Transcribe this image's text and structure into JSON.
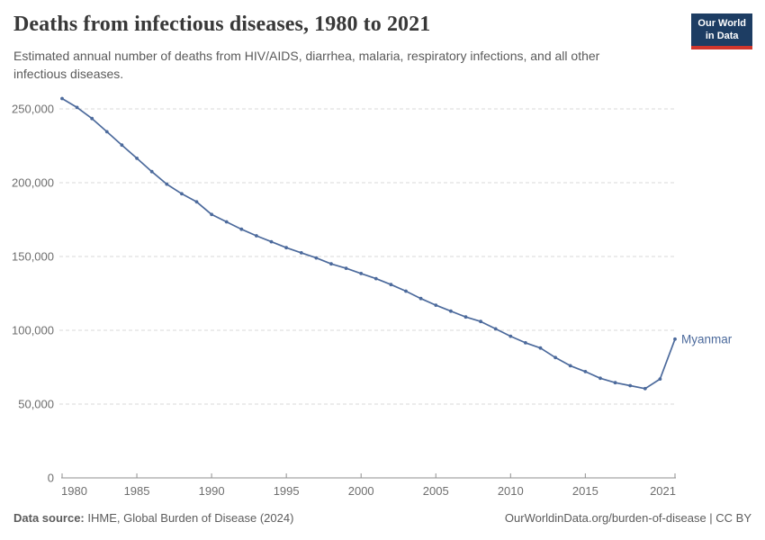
{
  "header": {
    "title": "Deaths from infectious diseases, 1980 to 2021",
    "subtitle": "Estimated annual number of deaths from HIV/AIDS, diarrhea, malaria, respiratory infections, and all other infectious diseases.",
    "logo": {
      "line1": "Our World",
      "line2": "in Data"
    }
  },
  "chart_data": {
    "type": "line",
    "title": "Deaths from infectious diseases, 1980 to 2021",
    "entity_label": "Myanmar",
    "x": [
      1980,
      1981,
      1982,
      1983,
      1984,
      1985,
      1986,
      1987,
      1988,
      1989,
      1990,
      1991,
      1992,
      1993,
      1994,
      1995,
      1996,
      1997,
      1998,
      1999,
      2000,
      2001,
      2002,
      2003,
      2004,
      2005,
      2006,
      2007,
      2008,
      2009,
      2010,
      2011,
      2012,
      2013,
      2014,
      2015,
      2016,
      2017,
      2018,
      2019,
      2020,
      2021
    ],
    "values": [
      257000,
      251000,
      243500,
      234500,
      225500,
      216500,
      207500,
      199000,
      192500,
      187000,
      178500,
      173500,
      168500,
      164000,
      160000,
      156000,
      152500,
      149000,
      145000,
      142000,
      138500,
      135000,
      131000,
      126500,
      121500,
      117000,
      113000,
      109000,
      106000,
      101000,
      96000,
      91500,
      88000,
      81500,
      76000,
      72000,
      67500,
      64500,
      62500,
      60500,
      67000,
      94000
    ],
    "xlabel": "",
    "ylabel": "",
    "xlim": [
      1980,
      2021
    ],
    "ylim": [
      0,
      260000
    ],
    "yticks": [
      0,
      50000,
      100000,
      150000,
      200000,
      250000
    ],
    "ytick_labels": [
      "0",
      "50,000",
      "100,000",
      "150,000",
      "200,000",
      "250,000"
    ],
    "xticks": [
      1980,
      1985,
      1990,
      1995,
      2000,
      2005,
      2010,
      2015,
      2021
    ],
    "xtick_labels": [
      "1980",
      "1985",
      "1990",
      "1995",
      "2000",
      "2005",
      "2010",
      "2015",
      "2021"
    ],
    "grid": "horizontal dashed",
    "legend_position": "end-of-line label",
    "line_color": "#4C6A9C"
  },
  "footer": {
    "source_label": "Data source:",
    "source_text": " IHME, Global Burden of Disease (2024)",
    "credit": "OurWorldinData.org/burden-of-disease | CC BY"
  },
  "colors": {
    "accent_line": "#4C6A9C",
    "grid": "#dadada",
    "axis": "#8f8f8f",
    "tick_text": "#6e6e6e",
    "logo_bg": "#1d3d63",
    "logo_stripe": "#d0362c"
  }
}
